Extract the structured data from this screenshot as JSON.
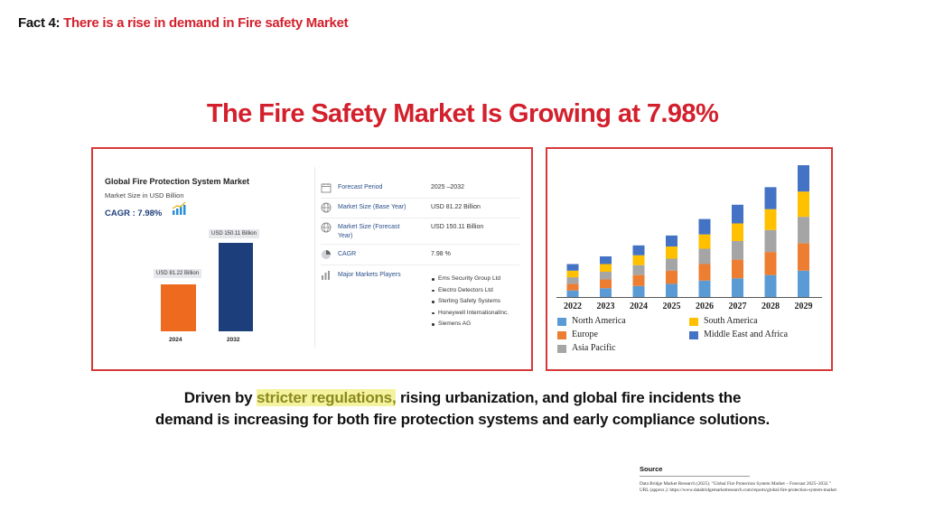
{
  "fact": {
    "prefix": "Fact 4:",
    "text": "There is a rise in demand in Fire safety Market"
  },
  "headline": "The Fire Safety Market Is Growing at 7.98%",
  "left_panel": {
    "title": "Global Fire Protection System Market",
    "subtitle": "Market Size in USD Billion",
    "cagr": "CAGR : 7.98%",
    "bars": [
      {
        "year": "2024",
        "label": "USD 81.22 Billion",
        "value": 81.22,
        "color": "#ee6a1e"
      },
      {
        "year": "2032",
        "label": "USD 150.11 Billion",
        "value": 150.11,
        "color": "#1c3f7c"
      }
    ],
    "info": [
      {
        "icon": "calendar-icon",
        "label": "Forecast Period",
        "value": "2025 –2032"
      },
      {
        "icon": "globe-icon",
        "label": "Market Size (Base Year)",
        "value": "USD 81.22 Billion"
      },
      {
        "icon": "globe-icon",
        "label": "Market Size (Forecast Year)",
        "value": "USD 150.11 Billion"
      },
      {
        "icon": "pie-chart-icon",
        "label": "CAGR",
        "value": "7.98 %"
      },
      {
        "icon": "bar-chart-icon",
        "label": "Major Markets Players",
        "value": ""
      }
    ],
    "players": [
      "Ems Security Group Ltd",
      "Electro Detectors Ltd",
      "Sterling Safety Systems",
      "Honeywell InternationalInc.",
      "Siemens AG"
    ]
  },
  "chart_data": {
    "type": "bar",
    "stacked": true,
    "title": "",
    "categories": [
      "2022",
      "2023",
      "2024",
      "2025",
      "2026",
      "2027",
      "2028",
      "2029"
    ],
    "series": [
      {
        "name": "North America",
        "color": "#5b9bd5",
        "values": [
          6,
          8,
          10,
          12,
          15,
          17,
          20,
          24
        ]
      },
      {
        "name": "Europe",
        "color": "#ed7d31",
        "values": [
          6,
          8,
          10,
          12,
          15,
          17,
          21,
          25
        ]
      },
      {
        "name": "Asia Pacific",
        "color": "#a5a5a5",
        "values": [
          6,
          7,
          9,
          11,
          14,
          17,
          20,
          24
        ]
      },
      {
        "name": "South America",
        "color": "#ffc000",
        "values": [
          6,
          7,
          9,
          11,
          13,
          16,
          19,
          23
        ]
      },
      {
        "name": "Middle East and Africa",
        "color": "#4472c4",
        "values": [
          6,
          7,
          9,
          10,
          14,
          17,
          20,
          24
        ]
      }
    ],
    "ylim": [
      0,
      120
    ],
    "grid": false,
    "legend_position": "bottom"
  },
  "body": {
    "pre": "Driven by ",
    "highlight": "stricter regulations,",
    "post": " rising urbanization, and global fire incidents the demand is increasing for both fire protection systems and early compliance solutions."
  },
  "source": {
    "title": "Source",
    "line1": "Data Bridge Market Research (2025). \"Global Fire Protection System Market – Forecast 2025–2032.\"",
    "line2": "URL (approx.): https://www.databridgemarketresearch.com/reports/global-fire-protection-system-market"
  }
}
